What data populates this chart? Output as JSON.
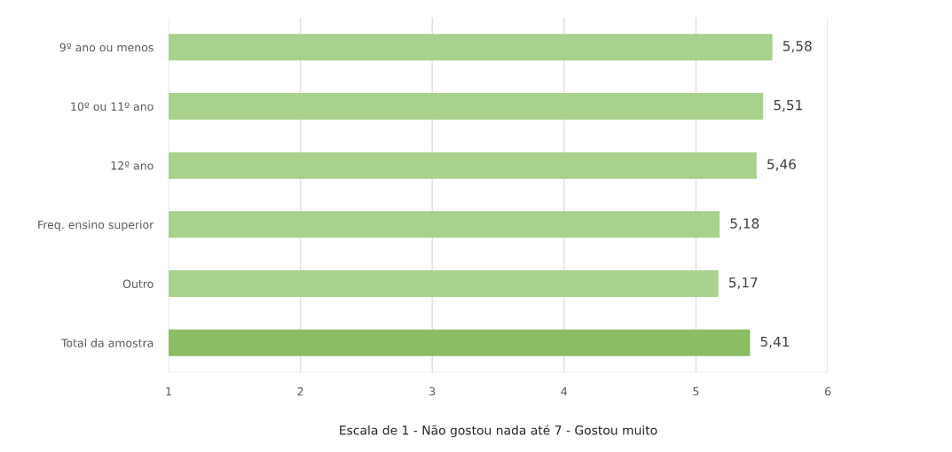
{
  "chart_data": {
    "type": "bar",
    "orientation": "horizontal",
    "xlabel": "Escala de 1 - Não gostou nada até 7 - Gostou muito",
    "categories": [
      "9º ano ou menos",
      "10º ou 11º ano",
      "12º ano",
      "Freq. ensino superior",
      "Outro",
      "Total da amostra"
    ],
    "values": [
      5.58,
      5.51,
      5.46,
      5.18,
      5.17,
      5.41
    ],
    "colors": [
      "#a9d18e",
      "#a9d18e",
      "#a9d18e",
      "#a9d18e",
      "#a9d18e",
      "#8bbd62"
    ],
    "value_labels": [
      "5,58",
      "5,51",
      "5,46",
      "5,18",
      "5,17",
      "5,41"
    ],
    "xlim": [
      1,
      6
    ],
    "xticks": [
      1,
      2,
      3,
      4,
      5,
      6
    ],
    "grid": "x"
  }
}
